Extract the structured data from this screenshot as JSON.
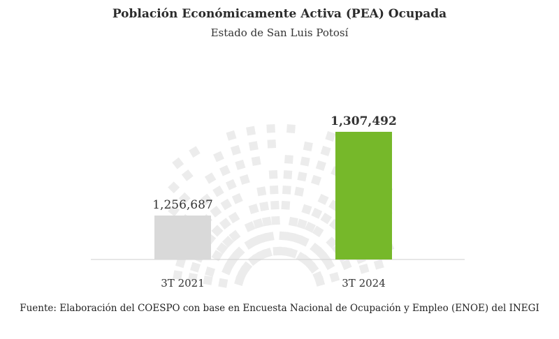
{
  "chart_data": {
    "type": "bar",
    "title": "Población Económicamente Activa (PEA) Ocupada",
    "subtitle": "Estado de San Luis Potosí",
    "categories": [
      "3T 2021",
      "3T 2024"
    ],
    "values": [
      1256687,
      1307492
    ],
    "data_labels": [
      "1,256,687",
      "1,307,492"
    ],
    "colors": [
      "#d9d9d9",
      "#76b82a"
    ],
    "ylim": [
      1230000,
      1320000
    ],
    "grid": false,
    "legend": "none",
    "source": "Fuente: Elaboración del COESPO con base en Encuesta Nacional de Ocupación y Empleo (ENOE) del INEGI"
  }
}
